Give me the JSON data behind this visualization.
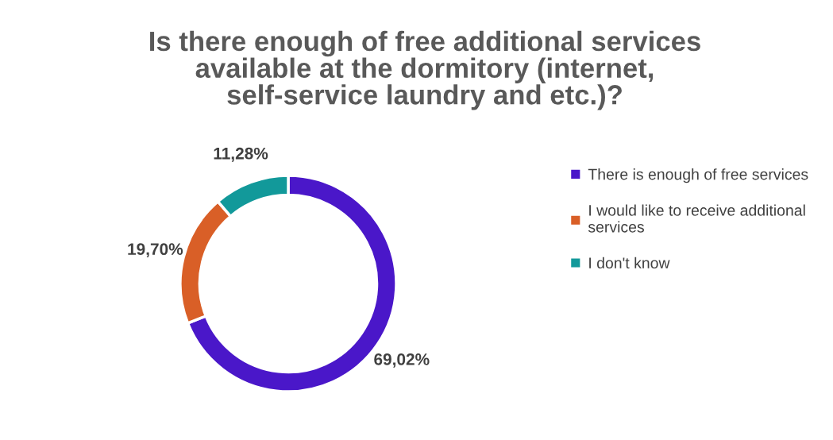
{
  "chart_data": {
    "type": "donut",
    "title": "Is there enough of free additional services available at the dormitory (internet, self-service laundry and etc.)?",
    "categories": [
      "There is enough of free services",
      "I would like to receive additional services",
      "I don't know"
    ],
    "values": [
      69.02,
      19.7,
      11.28
    ],
    "value_labels": [
      "69,02%",
      "19,70%",
      "11,28%"
    ],
    "colors": [
      "#4a17c9",
      "#d95f27",
      "#12999a"
    ],
    "legend": "right"
  }
}
